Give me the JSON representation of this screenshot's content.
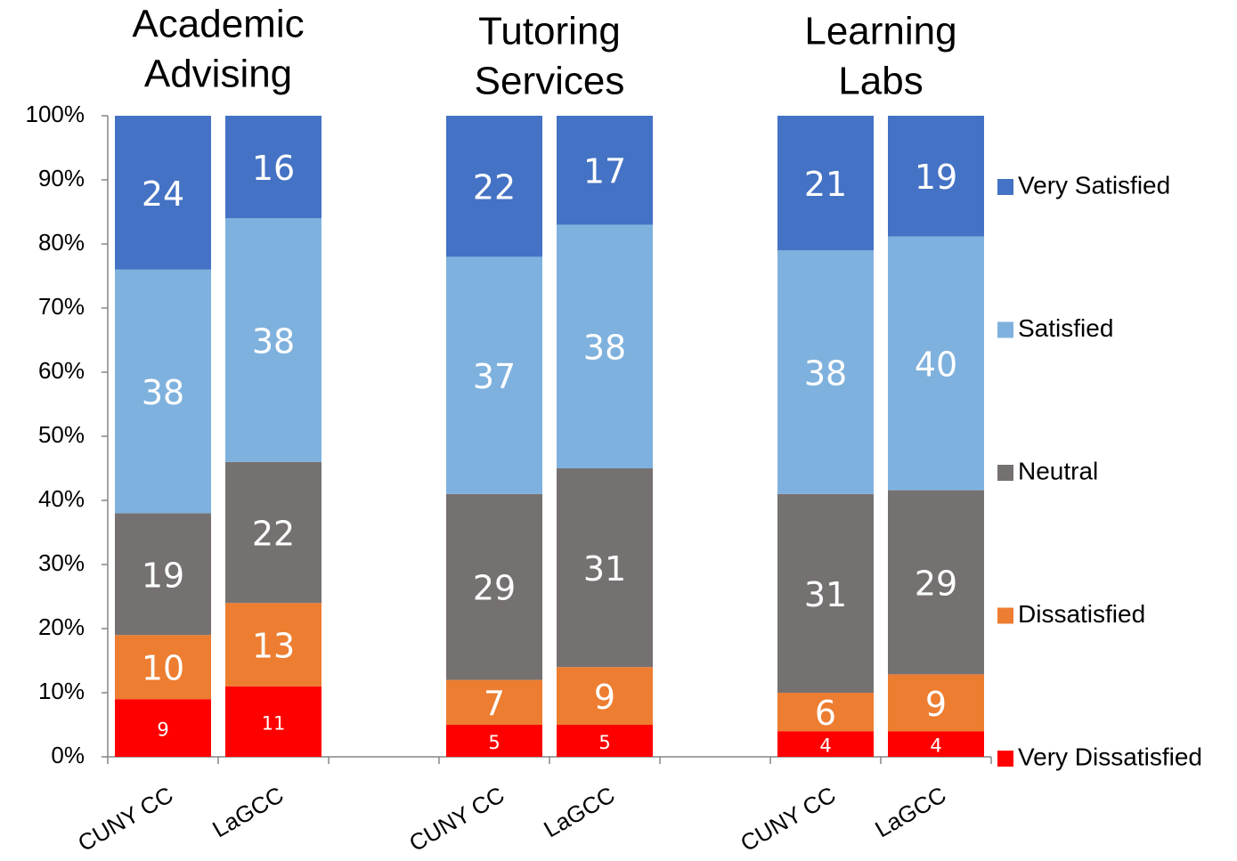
{
  "chart_data": {
    "type": "bar",
    "stacked": "percent",
    "group_titles": [
      [
        "Academic",
        "Advising"
      ],
      [
        "Tutoring",
        "Services"
      ],
      [
        "Learning",
        "Labs"
      ]
    ],
    "categories": [
      "CUNY CC",
      "LaGCC",
      null,
      "CUNY CC",
      "LaGCC",
      null,
      "CUNY CC",
      "LaGCC"
    ],
    "series": [
      {
        "name": "Very Dissatisfied",
        "color": "#ff0000",
        "values": [
          9,
          11,
          null,
          5,
          5,
          null,
          4,
          4
        ]
      },
      {
        "name": "Dissatisfied",
        "color": "#ed7d31",
        "values": [
          10,
          13,
          null,
          7,
          9,
          null,
          6,
          9
        ]
      },
      {
        "name": "Neutral",
        "color": "#767171",
        "values": [
          19,
          22,
          null,
          29,
          31,
          null,
          31,
          29
        ]
      },
      {
        "name": "Satisfied",
        "color": "#7fb1de",
        "values": [
          38,
          38,
          null,
          37,
          38,
          null,
          38,
          40
        ]
      },
      {
        "name": "Very Satisfied",
        "color": "#4472c4",
        "values": [
          24,
          16,
          null,
          22,
          17,
          null,
          21,
          19
        ]
      }
    ],
    "ylim": [
      0,
      100
    ],
    "yticks": [
      {
        "value": 0,
        "label": "0%"
      },
      {
        "value": 10,
        "label": "10%"
      },
      {
        "value": 20,
        "label": "20%"
      },
      {
        "value": 30,
        "label": "30%"
      },
      {
        "value": 40,
        "label": "40%"
      },
      {
        "value": 50,
        "label": "50%"
      },
      {
        "value": 60,
        "label": "60%"
      },
      {
        "value": 70,
        "label": "70%"
      },
      {
        "value": 80,
        "label": "80%"
      },
      {
        "value": 90,
        "label": "90%"
      },
      {
        "value": 100,
        "label": "100%"
      }
    ],
    "legend": "right"
  }
}
